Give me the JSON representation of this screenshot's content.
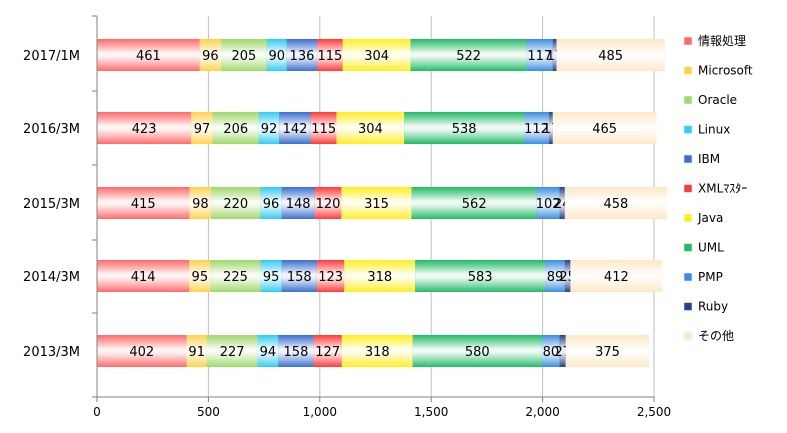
{
  "chart_data": {
    "type": "bar",
    "orientation": "horizontal",
    "stacked": true,
    "title": "",
    "xlabel": "",
    "ylabel": "",
    "xlim": [
      0,
      2500
    ],
    "xticks": [
      0,
      500,
      1000,
      1500,
      2000,
      2500
    ],
    "xtick_labels": [
      "0",
      "500",
      "1,000",
      "1,500",
      "2,000",
      "2,500"
    ],
    "grid": "vertical",
    "legend_position": "right",
    "categories": [
      "2017/1M",
      "2016/3M",
      "2015/3M",
      "2014/3M",
      "2013/3M"
    ],
    "series": [
      {
        "name": "情報処理",
        "color": "#ff6b6b",
        "values": [
          461,
          423,
          415,
          414,
          402
        ]
      },
      {
        "name": "Microsoft",
        "color": "#ffd24d",
        "values": [
          96,
          97,
          98,
          95,
          91
        ]
      },
      {
        "name": "Oracle",
        "color": "#9fd86b",
        "values": [
          205,
          206,
          220,
          225,
          227
        ]
      },
      {
        "name": "Linux",
        "color": "#33ccee",
        "values": [
          90,
          92,
          96,
          95,
          94
        ]
      },
      {
        "name": "IBM",
        "color": "#3a6fd0",
        "values": [
          136,
          142,
          148,
          158,
          158
        ]
      },
      {
        "name": "XMLﾏｽﾀｰ",
        "color": "#ff3b3b",
        "values": [
          115,
          115,
          120,
          123,
          127
        ]
      },
      {
        "name": "Java",
        "color": "#ffee22",
        "values": [
          304,
          304,
          315,
          318,
          318
        ]
      },
      {
        "name": "UML",
        "color": "#22bb66",
        "values": [
          522,
          538,
          562,
          583,
          580
        ]
      },
      {
        "name": "PMP",
        "color": "#3a8ee0",
        "values": [
          117,
          112,
          102,
          89,
          80
        ]
      },
      {
        "name": "Ruby",
        "color": "#2a3f88",
        "values": [
          17,
          17,
          24,
          25,
          27
        ]
      },
      {
        "name": "その他",
        "color": "#fde8c6",
        "values": [
          485,
          465,
          458,
          412,
          375
        ]
      }
    ]
  }
}
